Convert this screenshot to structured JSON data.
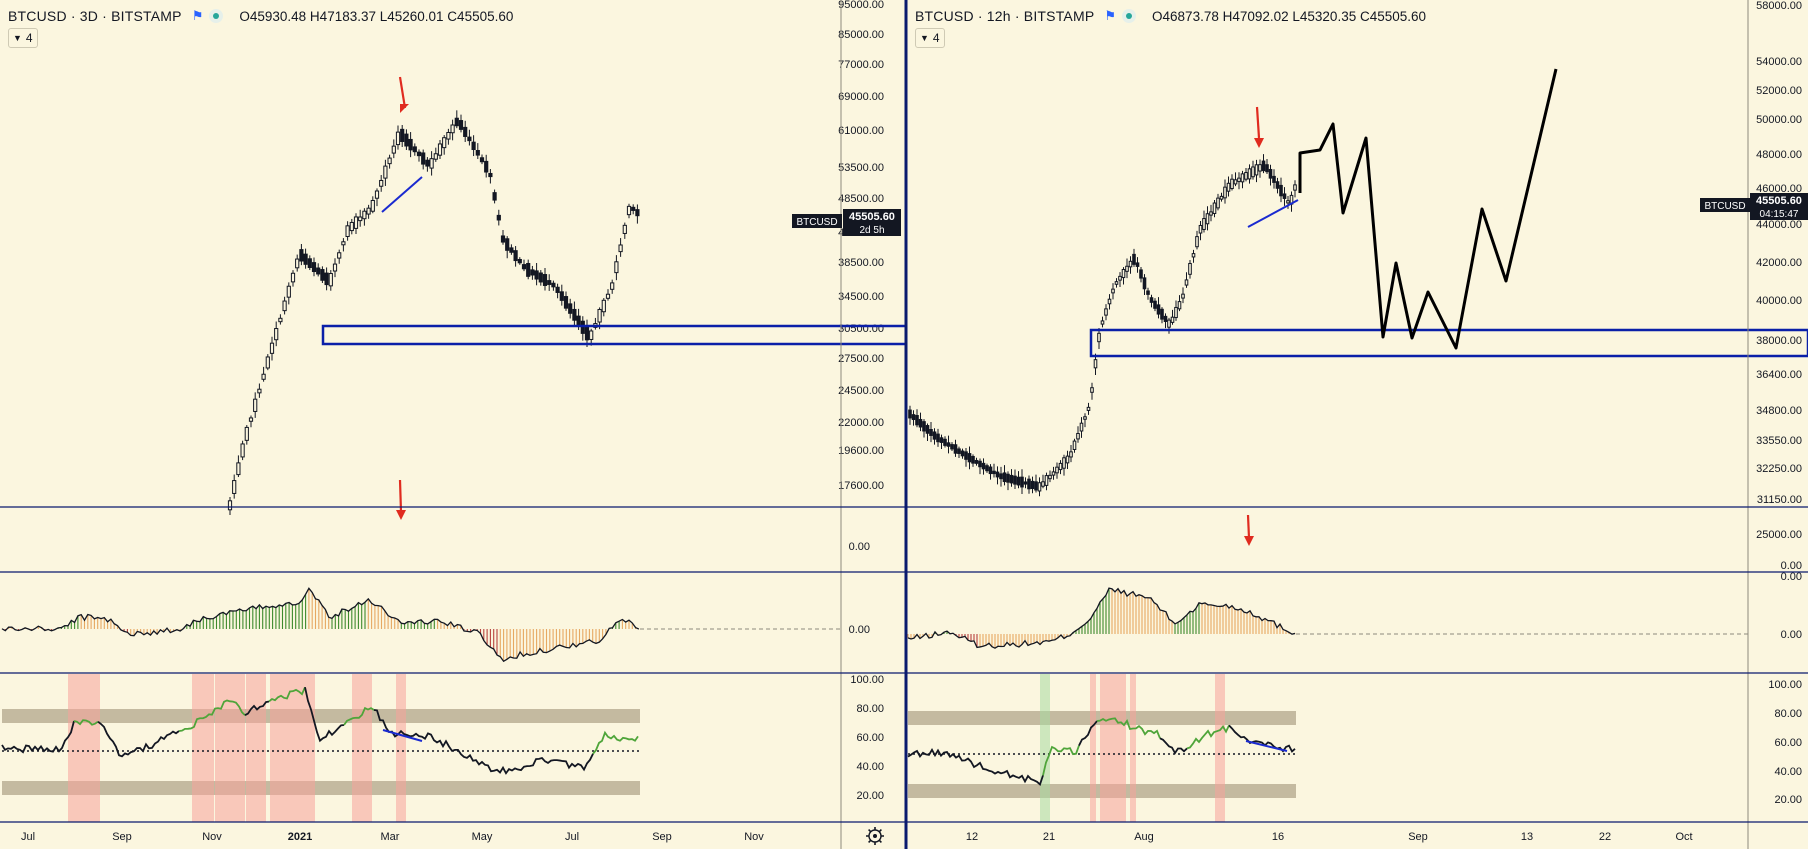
{
  "left_panel": {
    "symbol": "BTCUSD · 3D · BITSTAMP",
    "ohlc": "O45930.48 H47183.37 L45260.01 C45505.60",
    "indicator_count": "4",
    "price_tag": "BTCUSD",
    "last_price": "45505.60",
    "countdown": "2d 5h"
  },
  "right_panel": {
    "symbol": "BTCUSD · 12h · BITSTAMP",
    "ohlc": "O46873.78 H47092.02 L45320.35 C45505.60",
    "indicator_count": "4",
    "price_tag": "BTCUSD",
    "last_price": "45505.60",
    "countdown": "04:15:47"
  },
  "colors": {
    "background": "#fbf6df",
    "separator": "#0a1a6e",
    "annotation_arrow": "#e02b1f",
    "support_zone": "#0a1fa8",
    "trendline": "#1a2ad0",
    "candle": "#131722",
    "volume_up": "#5fcf4a",
    "volume_down": "#e3735e",
    "rsi_band": "#c4baa0",
    "rsi_overbought_shade": "#f7a39a",
    "rsi_oversold_shade": "#a8dba0"
  },
  "icons": [
    "flag-icon",
    "status-dot-icon",
    "settings-gear-icon",
    "chevron-down-icon"
  ],
  "chart_data": [
    {
      "type": "candlestick",
      "name": "BTCUSD 3D",
      "ylabel_ticks": [
        "95000.00",
        "85000.00",
        "77000.00",
        "69000.00",
        "61000.00",
        "53500.00",
        "48500.00",
        "42000.00",
        "38500.00",
        "34500.00",
        "30500.00",
        "27500.00",
        "24500.00",
        "22000.00",
        "19600.00",
        "17600.00"
      ],
      "x_ticks": [
        "Jul",
        "Sep",
        "Nov",
        "2021",
        "Mar",
        "May",
        "Jul",
        "Sep",
        "Nov"
      ],
      "last": 45505.6,
      "support_zone": [
        29000,
        31300
      ],
      "price_path_approx": [
        {
          "x": "2020-12-28",
          "y": 17000
        },
        {
          "x": "2021-01-08",
          "y": 40500
        },
        {
          "x": "2021-01-23",
          "y": 32500
        },
        {
          "x": "2021-02-21",
          "y": 57000
        },
        {
          "x": "2021-03-13",
          "y": 61000
        },
        {
          "x": "2021-04-14",
          "y": 63500
        },
        {
          "x": "2021-04-25",
          "y": 49000
        },
        {
          "x": "2021-05-19",
          "y": 38000
        },
        {
          "x": "2021-06-22",
          "y": 32000
        },
        {
          "x": "2021-07-20",
          "y": 30000
        },
        {
          "x": "2021-08-14",
          "y": 47000
        },
        {
          "x": "2021-08-17",
          "y": 45505.6
        }
      ],
      "volume_ticks": [
        "0.00"
      ],
      "oscillator_ticks": [
        "0.00"
      ],
      "rsi_ticks": [
        "100.00",
        "80.00",
        "60.00",
        "40.00",
        "20.00"
      ]
    },
    {
      "type": "candlestick",
      "name": "BTCUSD 12h",
      "ylabel_ticks": [
        "58000.00",
        "54000.00",
        "52000.00",
        "50000.00",
        "48000.00",
        "46000.00",
        "44000.00",
        "42000.00",
        "40000.00",
        "38000.00",
        "36400.00",
        "34800.00",
        "33550.00",
        "32250.00",
        "31150.00"
      ],
      "x_ticks": [
        "12",
        "21",
        "Aug",
        "16",
        "Sep",
        "13",
        "22",
        "Oct"
      ],
      "last": 45505.6,
      "support_zone": [
        37400,
        38600
      ],
      "projection_path": [
        45505,
        48000,
        50000,
        44200,
        49000,
        38000,
        42000,
        38100,
        40500,
        37800,
        44500,
        41200,
        53500
      ],
      "volume_ticks": [
        "25000.00",
        "0.00"
      ],
      "oscillator_ticks": [
        "0.00",
        "0.00"
      ],
      "rsi_ticks": [
        "100.00",
        "80.00",
        "60.00",
        "40.00",
        "20.00"
      ]
    }
  ]
}
